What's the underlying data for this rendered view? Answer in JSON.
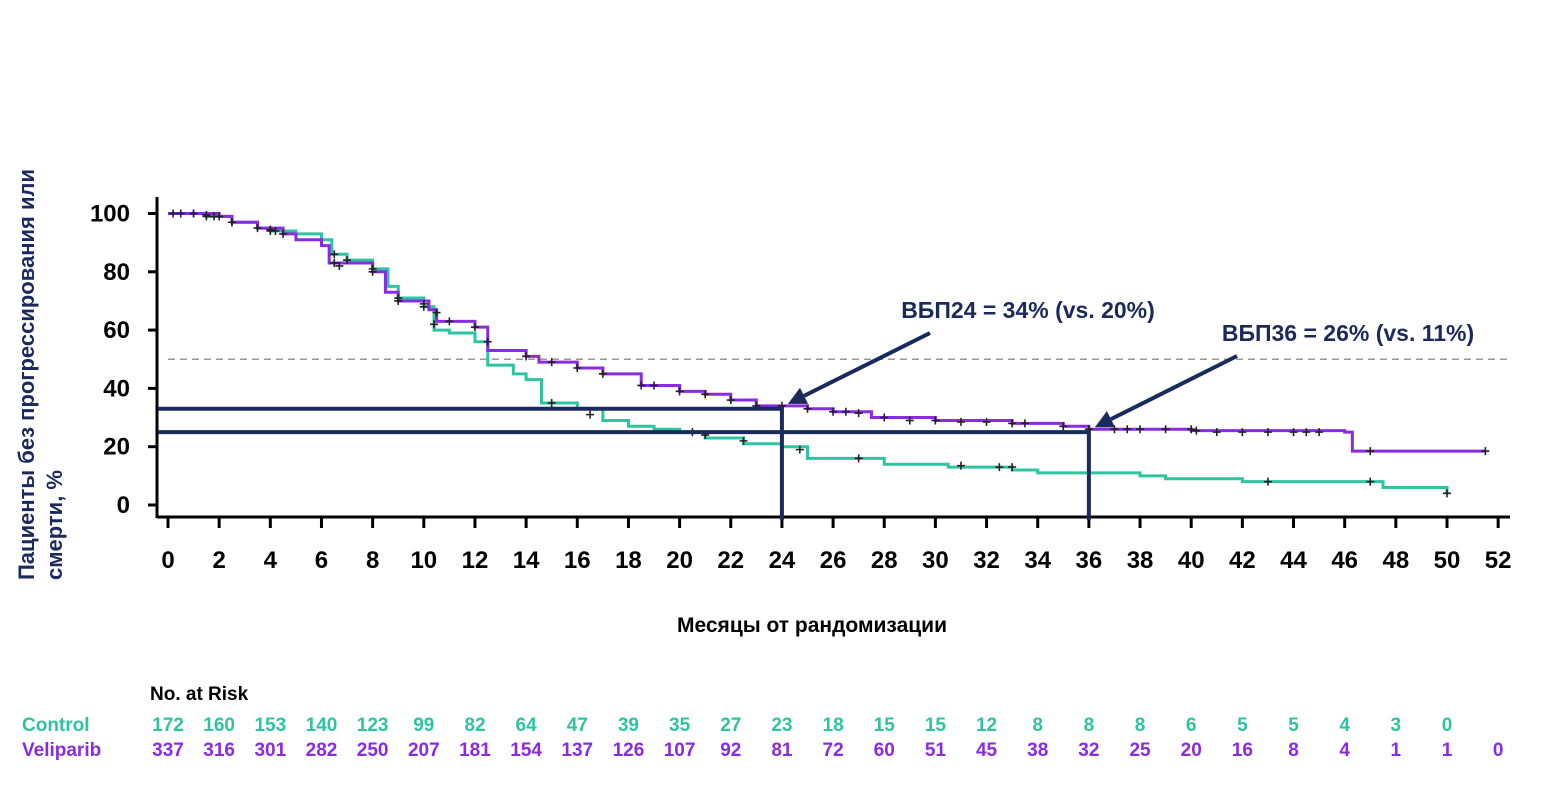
{
  "chart_data": {
    "type": "line",
    "subtype": "kaplan-meier",
    "ylabel_lines": [
      "Пациенты без прогрессирования или",
      "смерти, %"
    ],
    "xlabel": "Месяцы от рандомизации",
    "xlim": [
      0,
      52
    ],
    "ylim": [
      0,
      100
    ],
    "x_ticks": [
      "0",
      "2",
      "4",
      "6",
      "8",
      "10",
      "12",
      "14",
      "16",
      "18",
      "20",
      "22",
      "24",
      "26",
      "28",
      "30",
      "32",
      "34",
      "36",
      "38",
      "40",
      "42",
      "44",
      "46",
      "48",
      "50",
      "52"
    ],
    "y_ticks": [
      "0",
      "20",
      "40",
      "60",
      "80",
      "100"
    ],
    "reference_line_y": 50,
    "colors": {
      "control": "#2ec4a0",
      "veliparib": "#8a2be2",
      "annotation": "#1a2a5c",
      "reference": "#999999"
    },
    "series": [
      {
        "name": "Veliparib",
        "color": "#8a2be2",
        "points": [
          [
            0,
            100
          ],
          [
            2,
            99
          ],
          [
            2.5,
            97
          ],
          [
            3.5,
            95
          ],
          [
            4.5,
            93
          ],
          [
            5,
            91
          ],
          [
            6,
            89
          ],
          [
            6.3,
            83
          ],
          [
            8,
            80
          ],
          [
            8.5,
            73
          ],
          [
            9,
            70
          ],
          [
            10.2,
            67
          ],
          [
            10.5,
            63
          ],
          [
            12,
            61
          ],
          [
            12.5,
            53
          ],
          [
            14,
            51
          ],
          [
            14.5,
            49
          ],
          [
            16,
            47
          ],
          [
            17,
            45
          ],
          [
            18.5,
            41
          ],
          [
            20,
            39
          ],
          [
            21,
            38
          ],
          [
            22,
            36
          ],
          [
            23,
            34
          ],
          [
            25,
            33
          ],
          [
            26,
            32
          ],
          [
            27.5,
            30
          ],
          [
            30,
            29
          ],
          [
            33,
            28
          ],
          [
            35,
            27
          ],
          [
            36,
            26
          ],
          [
            40,
            25.5
          ],
          [
            46,
            25
          ],
          [
            46.3,
            18.5
          ],
          [
            51.5,
            18.5
          ]
        ],
        "censors": [
          [
            0.2,
            100
          ],
          [
            1,
            100
          ],
          [
            1.5,
            99.5
          ],
          [
            1.8,
            99
          ],
          [
            2,
            99
          ],
          [
            2.5,
            97
          ],
          [
            3.5,
            95
          ],
          [
            4,
            94.5
          ],
          [
            4.2,
            94
          ],
          [
            4.5,
            93
          ],
          [
            6.5,
            83
          ],
          [
            6.7,
            82
          ],
          [
            8,
            80
          ],
          [
            9,
            70
          ],
          [
            10,
            69
          ],
          [
            10.5,
            66
          ],
          [
            11,
            63
          ],
          [
            12,
            61
          ],
          [
            14,
            51
          ],
          [
            15,
            49
          ],
          [
            16,
            47
          ],
          [
            17,
            45
          ],
          [
            18.5,
            41
          ],
          [
            19,
            41
          ],
          [
            20,
            39
          ],
          [
            21,
            38
          ],
          [
            22,
            36
          ],
          [
            23,
            34
          ],
          [
            24,
            34
          ],
          [
            25,
            33
          ],
          [
            26,
            32
          ],
          [
            26.5,
            32
          ],
          [
            27,
            31.5
          ],
          [
            28,
            30
          ],
          [
            29,
            29
          ],
          [
            30,
            29
          ],
          [
            31,
            28.5
          ],
          [
            32,
            28.5
          ],
          [
            33,
            28
          ],
          [
            33.5,
            28
          ],
          [
            35,
            27
          ],
          [
            36,
            26
          ],
          [
            37,
            26
          ],
          [
            37.5,
            26
          ],
          [
            38,
            26
          ],
          [
            39,
            26
          ],
          [
            40,
            26
          ],
          [
            40.2,
            25.5
          ],
          [
            41,
            25
          ],
          [
            42,
            25
          ],
          [
            43,
            25
          ],
          [
            44,
            25
          ],
          [
            44.5,
            25
          ],
          [
            45,
            25
          ],
          [
            47,
            18.5
          ],
          [
            51.5,
            18.5
          ]
        ]
      },
      {
        "name": "Control",
        "color": "#2ec4a0",
        "points": [
          [
            0,
            100
          ],
          [
            1.5,
            99
          ],
          [
            2.5,
            97
          ],
          [
            3.5,
            95
          ],
          [
            4,
            94
          ],
          [
            5,
            93
          ],
          [
            6,
            91
          ],
          [
            6.4,
            86
          ],
          [
            7,
            84
          ],
          [
            8,
            81
          ],
          [
            8.6,
            75
          ],
          [
            9,
            71
          ],
          [
            10,
            68
          ],
          [
            10.4,
            60
          ],
          [
            11,
            59
          ],
          [
            12,
            56
          ],
          [
            12.5,
            48
          ],
          [
            13.5,
            45
          ],
          [
            14,
            43
          ],
          [
            14.6,
            35
          ],
          [
            16,
            33
          ],
          [
            17,
            29
          ],
          [
            18,
            27
          ],
          [
            19,
            26
          ],
          [
            20,
            25
          ],
          [
            21,
            23
          ],
          [
            22.5,
            21
          ],
          [
            24,
            20
          ],
          [
            25,
            16
          ],
          [
            27,
            16
          ],
          [
            28,
            14
          ],
          [
            30,
            14
          ],
          [
            30.5,
            13
          ],
          [
            33,
            12
          ],
          [
            34,
            11
          ],
          [
            37,
            11
          ],
          [
            38,
            10
          ],
          [
            39,
            9
          ],
          [
            42,
            8
          ],
          [
            47,
            8
          ],
          [
            47.5,
            6
          ],
          [
            50,
            4
          ]
        ],
        "censors": [
          [
            0.5,
            100
          ],
          [
            1,
            100
          ],
          [
            1.5,
            99
          ],
          [
            2.5,
            97
          ],
          [
            4,
            94
          ],
          [
            6.5,
            86
          ],
          [
            7,
            84
          ],
          [
            8,
            81
          ],
          [
            9,
            71
          ],
          [
            10,
            68
          ],
          [
            10.4,
            62
          ],
          [
            12.5,
            56
          ],
          [
            15,
            35
          ],
          [
            16.5,
            31
          ],
          [
            20.5,
            25
          ],
          [
            21,
            24
          ],
          [
            22.5,
            22
          ],
          [
            24.7,
            19
          ],
          [
            27,
            16
          ],
          [
            31,
            13.5
          ],
          [
            32.5,
            13
          ],
          [
            33,
            13
          ],
          [
            43,
            8
          ],
          [
            47,
            8
          ],
          [
            50,
            4
          ]
        ]
      }
    ],
    "guides": [
      {
        "label": "ВБП24",
        "x": 24,
        "y": 33
      },
      {
        "label": "ВБП36",
        "x": 36,
        "y": 25
      }
    ],
    "annotations": [
      {
        "text": "ВБП24 = 34% (vs. 20%)",
        "target_x": 24,
        "target_y": 34
      },
      {
        "text": "ВБП36 = 26% (vs. 11%)",
        "target_x": 36,
        "target_y": 26
      }
    ],
    "risk_table": {
      "header": "No. at Risk",
      "rows": [
        {
          "name": "Control",
          "color": "#2ec4a0",
          "values": [
            "172",
            "160",
            "153",
            "140",
            "123",
            "99",
            "82",
            "64",
            "47",
            "39",
            "35",
            "27",
            "23",
            "18",
            "15",
            "15",
            "12",
            "8",
            "8",
            "8",
            "6",
            "5",
            "5",
            "4",
            "3",
            "0"
          ]
        },
        {
          "name": "Veliparib",
          "color": "#8a2be2",
          "values": [
            "337",
            "316",
            "301",
            "282",
            "250",
            "207",
            "181",
            "154",
            "137",
            "126",
            "107",
            "92",
            "81",
            "72",
            "60",
            "51",
            "45",
            "38",
            "32",
            "25",
            "20",
            "16",
            "8",
            "4",
            "1",
            "1",
            "0"
          ]
        }
      ]
    }
  }
}
